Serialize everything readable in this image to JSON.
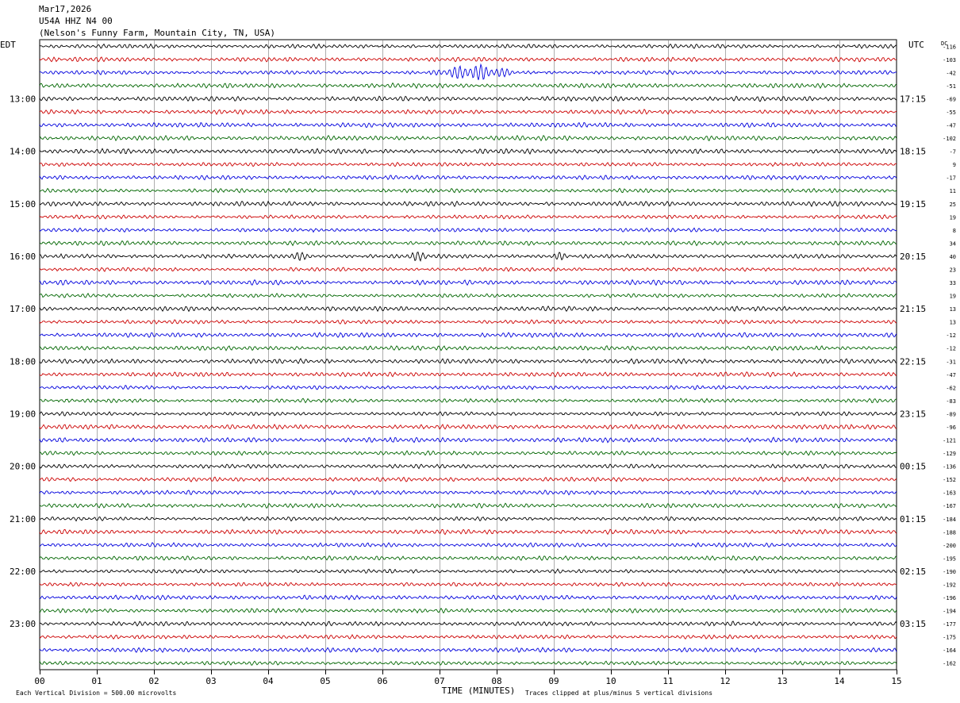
{
  "header": {
    "date": "Mar17,2026",
    "station": "U54A HHZ N4 00",
    "location": "(Nelson's Funny Farm, Mountain City, TN, USA)"
  },
  "chart_data": {
    "type": "line",
    "title": "Mar17,2026",
    "left_axis_label": "EDT",
    "right_axis_label": "UTC",
    "dc_label": "DC",
    "xlabel": "TIME (MINUTES)",
    "xlim": [
      0,
      15
    ],
    "x_ticks": [
      "00",
      "01",
      "02",
      "03",
      "04",
      "05",
      "06",
      "07",
      "08",
      "09",
      "10",
      "11",
      "12",
      "13",
      "14",
      "15"
    ],
    "left_hour_labels": [
      "13:00",
      "14:00",
      "15:00",
      "16:00",
      "17:00",
      "18:00",
      "19:00",
      "20:00",
      "21:00",
      "22:00",
      "23:00"
    ],
    "right_hour_labels": [
      "17:15",
      "18:15",
      "19:15",
      "20:15",
      "21:15",
      "22:15",
      "23:15",
      "00:15",
      "01:15",
      "02:15",
      "03:15"
    ],
    "dc_offsets": [
      -116,
      -103,
      -42,
      -51,
      -69,
      -55,
      -47,
      -102,
      -7,
      9,
      -17,
      11,
      25,
      19,
      8,
      34,
      40,
      23,
      33,
      19,
      13,
      13,
      -12,
      -12,
      -31,
      -47,
      -62,
      -83,
      -89,
      -96,
      -121,
      -129,
      -136,
      -152,
      -163,
      -167,
      -184,
      -188,
      -200,
      -195,
      -190,
      -192,
      -196,
      -194,
      -177,
      -175,
      -164,
      -162
    ],
    "trace_colors": [
      "#000000",
      "#cc0000",
      "#0000dd",
      "#006600"
    ],
    "grid": true,
    "footer_left": "Each Vertical Division =  500.00 microvolts",
    "footer_right": "Traces clipped at plus/minus 5 vertical divisions",
    "events": [
      {
        "trace": 2,
        "start_min": 6.8,
        "end_min": 8.4,
        "description": "large blue burst"
      },
      {
        "trace": 16,
        "start_min": 4.2,
        "end_min": 4.9,
        "description": "black burst"
      },
      {
        "trace": 16,
        "start_min": 6.3,
        "end_min": 6.9,
        "description": "black burst"
      },
      {
        "trace": 16,
        "start_min": 8.9,
        "end_min": 9.3,
        "description": "black burst"
      }
    ]
  }
}
